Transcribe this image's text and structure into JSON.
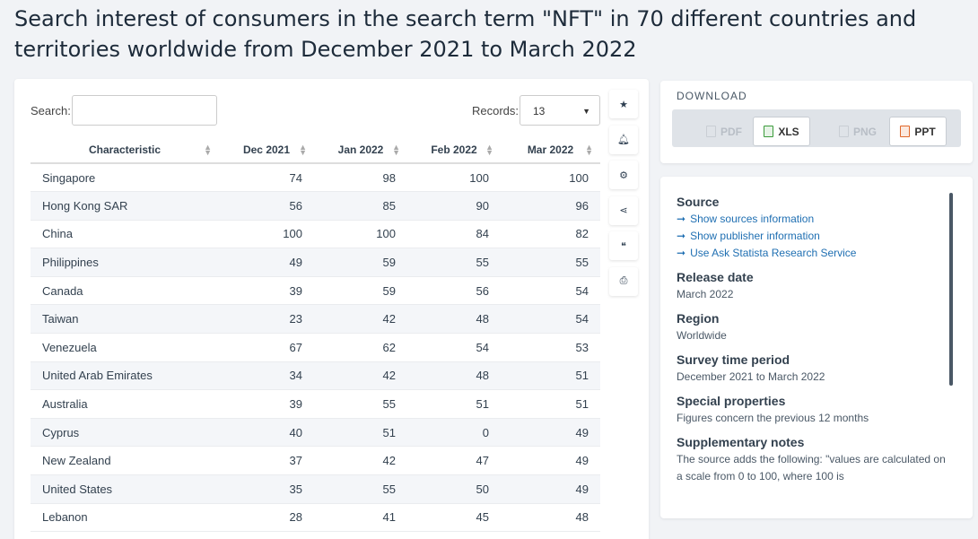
{
  "title": "Search interest of consumers in the search term \"NFT\" in 70 different countries and territories worldwide from December 2021 to March 2022",
  "search": {
    "label": "Search:",
    "value": ""
  },
  "records": {
    "label": "Records:",
    "value": "13"
  },
  "table": {
    "headers": [
      "Characteristic",
      "Dec 2021",
      "Jan 2022",
      "Feb 2022",
      "Mar 2022"
    ],
    "rows": [
      [
        "Singapore",
        "74",
        "98",
        "100",
        "100"
      ],
      [
        "Hong Kong SAR",
        "56",
        "85",
        "90",
        "96"
      ],
      [
        "China",
        "100",
        "100",
        "84",
        "82"
      ],
      [
        "Philippines",
        "49",
        "59",
        "55",
        "55"
      ],
      [
        "Canada",
        "39",
        "59",
        "56",
        "54"
      ],
      [
        "Taiwan",
        "23",
        "42",
        "48",
        "54"
      ],
      [
        "Venezuela",
        "67",
        "62",
        "54",
        "53"
      ],
      [
        "United Arab Emirates",
        "34",
        "42",
        "48",
        "51"
      ],
      [
        "Australia",
        "39",
        "55",
        "51",
        "51"
      ],
      [
        "Cyprus",
        "40",
        "51",
        "0",
        "49"
      ],
      [
        "New Zealand",
        "37",
        "42",
        "47",
        "49"
      ],
      [
        "United States",
        "35",
        "55",
        "50",
        "49"
      ],
      [
        "Lebanon",
        "28",
        "41",
        "45",
        "48"
      ]
    ]
  },
  "tools": [
    "star-icon",
    "bell-icon",
    "gear-icon",
    "share-icon",
    "quote-icon",
    "print-icon"
  ],
  "download": {
    "title": "DOWNLOAD",
    "buttons": [
      {
        "label": "PDF",
        "enabled": false,
        "color": "#c9ced4"
      },
      {
        "label": "XLS",
        "enabled": true,
        "color": "#3a9b3a"
      },
      {
        "label": "PNG",
        "enabled": false,
        "color": "#c9ced4"
      },
      {
        "label": "PPT",
        "enabled": true,
        "color": "#e0672a"
      }
    ]
  },
  "info": {
    "source_head": "Source",
    "links": [
      "Show sources information",
      "Show publisher information",
      "Use Ask Statista Research Service"
    ],
    "release_head": "Release date",
    "release": "March 2022",
    "region_head": "Region",
    "region": "Worldwide",
    "survey_head": "Survey time period",
    "survey": "December 2021 to March 2022",
    "special_head": "Special properties",
    "special": "Figures concern the previous 12 months",
    "notes_head": "Supplementary notes",
    "notes": "The source adds the following: \"values are calculated on a scale from 0 to 100, where 100 is"
  }
}
